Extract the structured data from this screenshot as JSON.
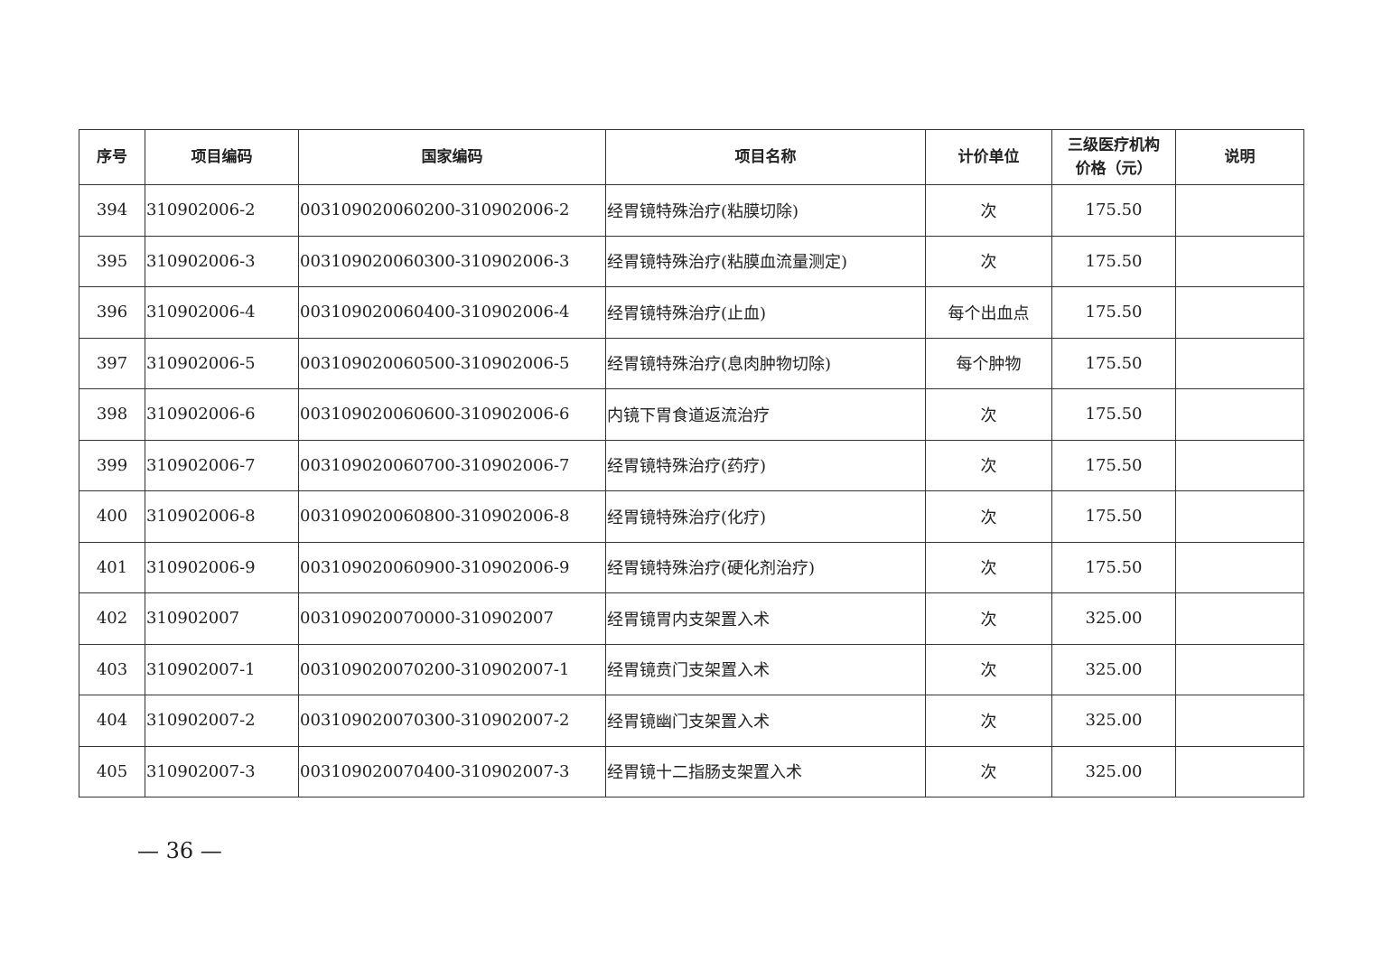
{
  "table": {
    "headers": [
      "序号",
      "项目编码",
      "国家编码",
      "项目名称",
      "计价单位",
      "三级医疗机构\n价格（元）",
      "说明"
    ],
    "header_price_line1": "三级医疗机构",
    "header_price_line2": "价格（元）",
    "rows": [
      {
        "no": "394",
        "code": "310902006-2",
        "national": "003109020060200-310902006-2",
        "name": "经胃镜特殊治疗(粘膜切除)",
        "unit": "次",
        "price": "175.50",
        "note": ""
      },
      {
        "no": "395",
        "code": "310902006-3",
        "national": "003109020060300-310902006-3",
        "name": "经胃镜特殊治疗(粘膜血流量测定)",
        "unit": "次",
        "price": "175.50",
        "note": ""
      },
      {
        "no": "396",
        "code": "310902006-4",
        "national": "003109020060400-310902006-4",
        "name": "经胃镜特殊治疗(止血)",
        "unit": "每个出血点",
        "price": "175.50",
        "note": ""
      },
      {
        "no": "397",
        "code": "310902006-5",
        "national": "003109020060500-310902006-5",
        "name": "经胃镜特殊治疗(息肉肿物切除)",
        "unit": "每个肿物",
        "price": "175.50",
        "note": ""
      },
      {
        "no": "398",
        "code": "310902006-6",
        "national": "003109020060600-310902006-6",
        "name": "内镜下胃食道返流治疗",
        "unit": "次",
        "price": "175.50",
        "note": ""
      },
      {
        "no": "399",
        "code": "310902006-7",
        "national": "003109020060700-310902006-7",
        "name": "经胃镜特殊治疗(药疗)",
        "unit": "次",
        "price": "175.50",
        "note": ""
      },
      {
        "no": "400",
        "code": "310902006-8",
        "national": "003109020060800-310902006-8",
        "name": "经胃镜特殊治疗(化疗)",
        "unit": "次",
        "price": "175.50",
        "note": ""
      },
      {
        "no": "401",
        "code": "310902006-9",
        "national": "003109020060900-310902006-9",
        "name": "经胃镜特殊治疗(硬化剂治疗)",
        "unit": "次",
        "price": "175.50",
        "note": ""
      },
      {
        "no": "402",
        "code": "310902007",
        "national": "003109020070000-310902007",
        "name": "经胃镜胃内支架置入术",
        "unit": "次",
        "price": "325.00",
        "note": ""
      },
      {
        "no": "403",
        "code": "310902007-1",
        "national": "003109020070200-310902007-1",
        "name": "经胃镜贲门支架置入术",
        "unit": "次",
        "price": "325.00",
        "note": ""
      },
      {
        "no": "404",
        "code": "310902007-2",
        "national": "003109020070300-310902007-2",
        "name": "经胃镜幽门支架置入术",
        "unit": "次",
        "price": "325.00",
        "note": ""
      },
      {
        "no": "405",
        "code": "310902007-3",
        "national": "003109020070400-310902007-3",
        "name": "经胃镜十二指肠支架置入术",
        "unit": "次",
        "price": "325.00",
        "note": ""
      }
    ]
  },
  "footer": {
    "page": "— 36 —"
  }
}
